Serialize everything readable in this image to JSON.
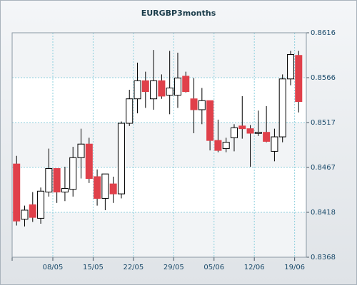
{
  "chart_data": {
    "type": "candlestick",
    "title": "EURGBP3months",
    "xlabel": "",
    "ylabel": "",
    "ylim": [
      0.8368,
      0.8616
    ],
    "y_ticks": [
      "0.8616",
      "0.8566",
      "0.8517",
      "0.8467",
      "0.8418",
      "0.8368"
    ],
    "x_ticks": [
      {
        "label": "08/05",
        "index": 4.5
      },
      {
        "label": "15/05",
        "index": 9.5
      },
      {
        "label": "22/05",
        "index": 14.5
      },
      {
        "label": "29/05",
        "index": 19.5
      },
      {
        "label": "05/06",
        "index": 24.5
      },
      {
        "label": "12/06",
        "index": 29.5
      },
      {
        "label": "19/06",
        "index": 34.5
      }
    ],
    "grid": true,
    "bullish_color": "#ffffff",
    "bearish_color": "#e0404a",
    "candles": [
      {
        "open": 0.8471,
        "high": 0.848,
        "low": 0.8403,
        "close": 0.8408
      },
      {
        "open": 0.841,
        "high": 0.8425,
        "low": 0.8402,
        "close": 0.842
      },
      {
        "open": 0.8426,
        "high": 0.844,
        "low": 0.8407,
        "close": 0.8412
      },
      {
        "open": 0.8411,
        "high": 0.8445,
        "low": 0.8405,
        "close": 0.8441
      },
      {
        "open": 0.844,
        "high": 0.8488,
        "low": 0.8435,
        "close": 0.8466
      },
      {
        "open": 0.8466,
        "high": 0.8465,
        "low": 0.8428,
        "close": 0.844
      },
      {
        "open": 0.844,
        "high": 0.8468,
        "low": 0.843,
        "close": 0.8444
      },
      {
        "open": 0.8443,
        "high": 0.849,
        "low": 0.8435,
        "close": 0.8478
      },
      {
        "open": 0.8478,
        "high": 0.851,
        "low": 0.8455,
        "close": 0.8493
      },
      {
        "open": 0.8493,
        "high": 0.85,
        "low": 0.845,
        "close": 0.8455
      },
      {
        "open": 0.8457,
        "high": 0.8465,
        "low": 0.8425,
        "close": 0.8433
      },
      {
        "open": 0.8433,
        "high": 0.846,
        "low": 0.842,
        "close": 0.846
      },
      {
        "open": 0.8449,
        "high": 0.8457,
        "low": 0.8428,
        "close": 0.8438
      },
      {
        "open": 0.8438,
        "high": 0.8518,
        "low": 0.8433,
        "close": 0.8516
      },
      {
        "open": 0.8516,
        "high": 0.8553,
        "low": 0.8513,
        "close": 0.8543
      },
      {
        "open": 0.8543,
        "high": 0.8583,
        "low": 0.8527,
        "close": 0.8563
      },
      {
        "open": 0.8563,
        "high": 0.8573,
        "low": 0.8533,
        "close": 0.8551
      },
      {
        "open": 0.8543,
        "high": 0.8597,
        "low": 0.8531,
        "close": 0.8563
      },
      {
        "open": 0.8563,
        "high": 0.857,
        "low": 0.8543,
        "close": 0.8546
      },
      {
        "open": 0.8547,
        "high": 0.8596,
        "low": 0.8526,
        "close": 0.8555
      },
      {
        "open": 0.8547,
        "high": 0.8594,
        "low": 0.8533,
        "close": 0.8566
      },
      {
        "open": 0.8568,
        "high": 0.8573,
        "low": 0.855,
        "close": 0.8551
      },
      {
        "open": 0.8543,
        "high": 0.8566,
        "low": 0.8505,
        "close": 0.8531
      },
      {
        "open": 0.8531,
        "high": 0.8555,
        "low": 0.8515,
        "close": 0.8541
      },
      {
        "open": 0.8541,
        "high": 0.8541,
        "low": 0.8486,
        "close": 0.8497
      },
      {
        "open": 0.8497,
        "high": 0.852,
        "low": 0.8484,
        "close": 0.8486
      },
      {
        "open": 0.8488,
        "high": 0.85,
        "low": 0.8484,
        "close": 0.8495
      },
      {
        "open": 0.85,
        "high": 0.8515,
        "low": 0.8485,
        "close": 0.8511
      },
      {
        "open": 0.8513,
        "high": 0.8546,
        "low": 0.8499,
        "close": 0.851
      },
      {
        "open": 0.851,
        "high": 0.8514,
        "low": 0.8468,
        "close": 0.8505
      },
      {
        "open": 0.8505,
        "high": 0.853,
        "low": 0.8502,
        "close": 0.8506
      },
      {
        "open": 0.8506,
        "high": 0.8535,
        "low": 0.8495,
        "close": 0.8496
      },
      {
        "open": 0.8485,
        "high": 0.851,
        "low": 0.8474,
        "close": 0.8501
      },
      {
        "open": 0.8501,
        "high": 0.857,
        "low": 0.8495,
        "close": 0.8565
      },
      {
        "open": 0.8565,
        "high": 0.8596,
        "low": 0.8558,
        "close": 0.8592
      },
      {
        "open": 0.8591,
        "high": 0.8596,
        "low": 0.8528,
        "close": 0.854
      }
    ]
  }
}
